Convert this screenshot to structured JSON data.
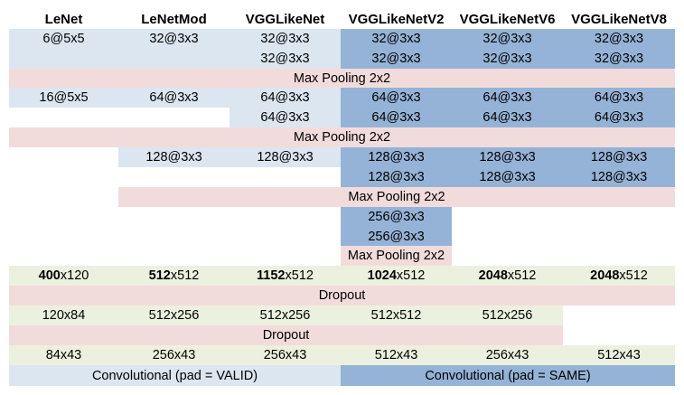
{
  "headers": [
    "LeNet",
    "LeNetMod",
    "VGGLikeNet",
    "VGGLikeNetV2",
    "VGGLikeNetV6",
    "VGGLikeNetV8"
  ],
  "colors": {
    "light_blue": "#dce6f0",
    "dark_blue": "#95b3d7",
    "pink": "#f2dcdb",
    "green": "#ebf1de",
    "white": "#ffffff"
  },
  "cells": {
    "block1": {
      "lenet": "6@5x5",
      "lenetmod": "32@3x3",
      "vgg_r1": "32@3x3",
      "vgg_r2": "32@3x3",
      "v2_r1": "32@3x3",
      "v2_r2": "32@3x3",
      "v6_r1": "32@3x3",
      "v6_r2": "32@3x3",
      "v8_r1": "32@3x3",
      "v8_r2": "32@3x3"
    },
    "pool1": "Max Pooling 2x2",
    "block2": {
      "lenet": "16@5x5",
      "lenetmod": "64@3x3",
      "vgg_r1": "64@3x3",
      "vgg_r2": "64@3x3",
      "v2_r1": "64@3x3",
      "v2_r2": "64@3x3",
      "v6_r1": "64@3x3",
      "v6_r2": "64@3x3",
      "v8_r1": "64@3x3",
      "v8_r2": "64@3x3"
    },
    "pool2": "Max Pooling 2x2",
    "block3": {
      "lenetmod": "128@3x3",
      "vgg": "128@3x3",
      "v2_r1": "128@3x3",
      "v2_r2": "128@3x3",
      "v6_r1": "128@3x3",
      "v6_r2": "128@3x3",
      "v8_r1": "128@3x3",
      "v8_r2": "128@3x3"
    },
    "pool3": "Max Pooling 2x2",
    "block4": {
      "v2_r1": "256@3x3",
      "v2_r2": "256@3x3"
    },
    "pool4": "Max Pooling 2x2",
    "fc1": {
      "lenet": {
        "bold": "400",
        "rest": "x120"
      },
      "lenetmod": {
        "bold": "512",
        "rest": "x512"
      },
      "vgg": {
        "bold": "1152",
        "rest": "x512"
      },
      "v2": {
        "bold": "1024",
        "rest": "x512"
      },
      "v6": {
        "bold": "2048",
        "rest": "x512"
      },
      "v8": {
        "bold": "2048",
        "rest": "x512"
      }
    },
    "dropout1": "Dropout",
    "fc2": {
      "lenet": "120x84",
      "lenetmod": "512x256",
      "vgg": "512x256",
      "v2": "512x512",
      "v6": "512x256"
    },
    "dropout2": "Dropout",
    "fc3": {
      "lenet": "84x43",
      "lenetmod": "256x43",
      "vgg": "256x43",
      "v2": "512x43",
      "v6": "256x43",
      "v8": "512x43"
    },
    "footer": {
      "valid": "Convolutional (pad = VALID)",
      "same": "Convolutional (pad = SAME)"
    }
  }
}
